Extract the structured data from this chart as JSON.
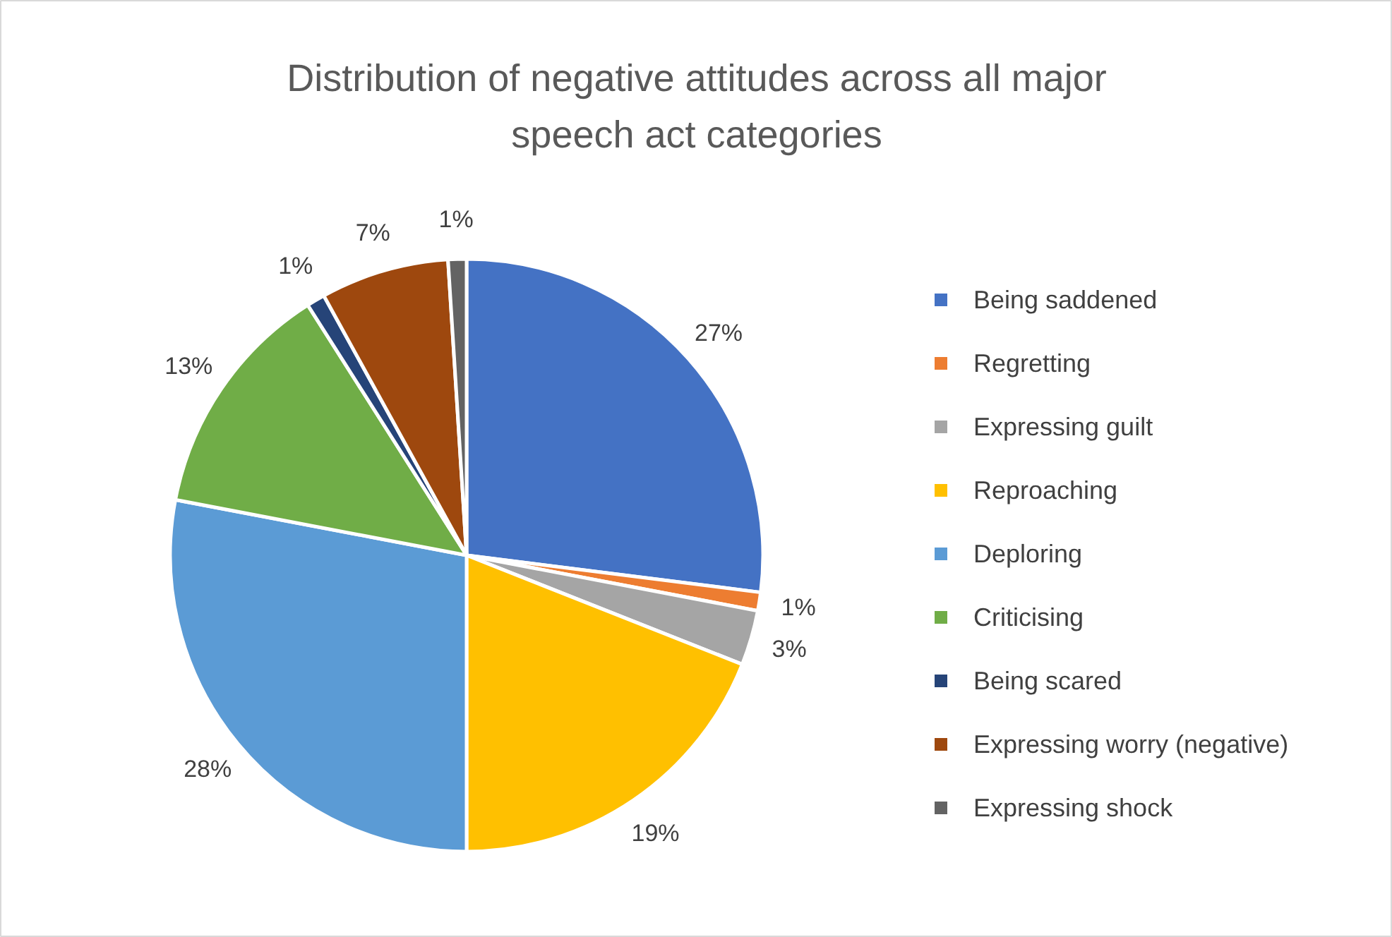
{
  "chart_data": {
    "type": "pie",
    "title": "Distribution of negative attitudes across all major speech act categories",
    "categories": [
      "Being saddened",
      "Regretting",
      "Expressing guilt",
      "Reproaching",
      "Deploring",
      "Criticising",
      "Being scared",
      "Expressing worry (negative)",
      "Expressing shock"
    ],
    "values": [
      27,
      1,
      3,
      19,
      28,
      13,
      1,
      7,
      1
    ],
    "colors": [
      "#4472c4",
      "#ed7d31",
      "#a5a5a5",
      "#ffc000",
      "#5b9bd5",
      "#70ad47",
      "#264478",
      "#9e480e",
      "#636363"
    ],
    "value_labels": [
      "27%",
      "1%",
      "3%",
      "19%",
      "28%",
      "13%",
      "1%",
      "7%",
      "1%"
    ],
    "legend": "right"
  }
}
